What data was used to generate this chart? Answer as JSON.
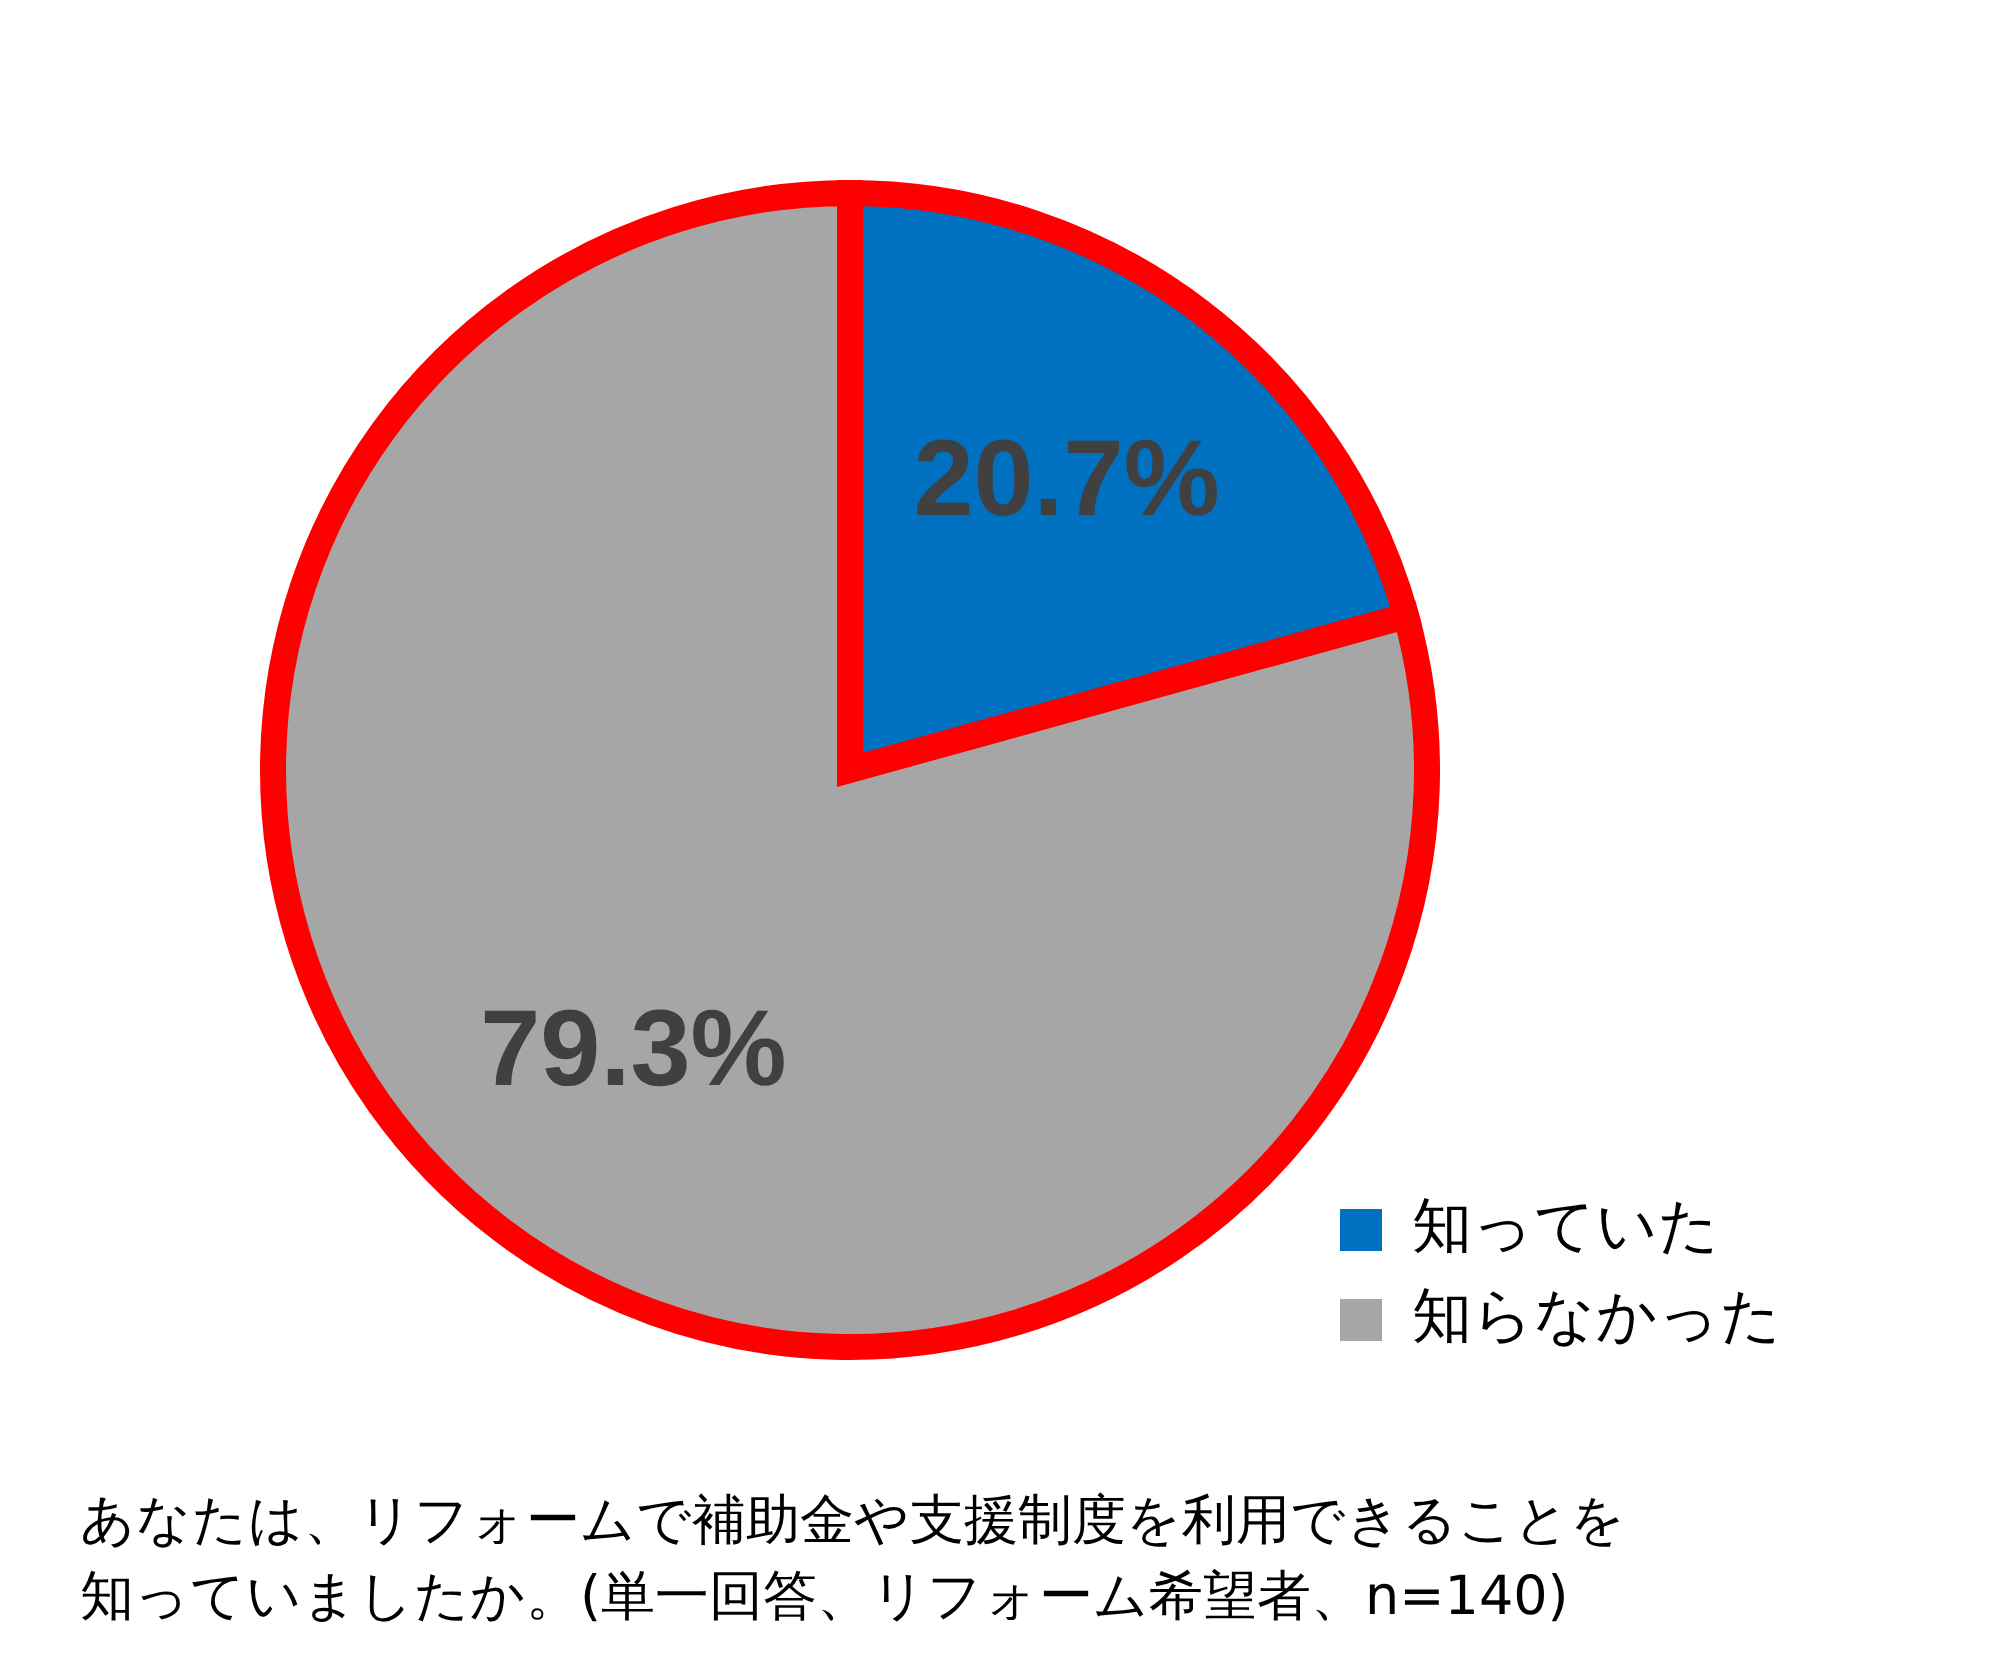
{
  "chart_data": {
    "type": "pie",
    "categories": [
      "知っていた",
      "知らなかった"
    ],
    "values": [
      20.7,
      79.3
    ],
    "colors": [
      "#0070c0",
      "#a6a6a6"
    ],
    "value_labels": [
      "20.7%",
      "79.3%"
    ],
    "legend": "bottom right",
    "annotations": [
      "あなたは、リフォームで補助金や支援制度を利用できることを知っていましたか。(単一回答、リフォーム希望者、n=140)"
    ]
  }
}
